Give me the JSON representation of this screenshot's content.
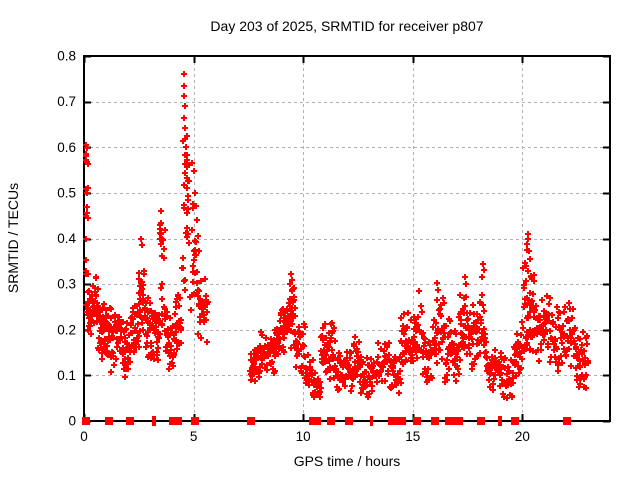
{
  "page": {
    "background": "#ffffff"
  },
  "chart_data": {
    "type": "scatter",
    "title": "Day 203 of 2025, SRMTID for receiver p807",
    "xlabel": "GPS time / hours",
    "ylabel": "SRMTID / TECUs",
    "xlim": [
      0,
      24
    ],
    "ylim": [
      0,
      0.8
    ],
    "xtick_values": [
      0,
      5,
      10,
      15,
      20
    ],
    "xtick_labels": [
      "0",
      "5",
      "10",
      "15",
      "20"
    ],
    "ytick_values": [
      0,
      0.1,
      0.2,
      0.3,
      0.4,
      0.5,
      0.6,
      0.7,
      0.8
    ],
    "ytick_labels": [
      "0",
      "0.1",
      "0.2",
      "0.3",
      "0.4",
      "0.5",
      "0.6",
      "0.7",
      "0.8"
    ],
    "grid": true,
    "legend": "none",
    "axis_color": "#000000",
    "grid_color": "#b0b0b0",
    "marker": {
      "shape": "plus",
      "color": "#ff0000",
      "size": 7
    },
    "zero_marker": {
      "shape": "filled-square",
      "color": "#ff0000",
      "size": 8
    },
    "series": [
      {
        "name": "SRMTID",
        "seed": 918273,
        "segments": [
          [
            0.06,
            0.2,
            14,
            0.2,
            0.61,
            1
          ],
          [
            0.15,
            0.65,
            50,
            0.16,
            0.33,
            0
          ],
          [
            0.65,
            1.15,
            48,
            0.13,
            0.28,
            0
          ],
          [
            1.15,
            1.8,
            48,
            0.1,
            0.26,
            0
          ],
          [
            1.8,
            2.12,
            28,
            0.09,
            0.22,
            0
          ],
          [
            2.12,
            2.55,
            32,
            0.12,
            0.28,
            0
          ],
          [
            2.5,
            2.78,
            24,
            0.16,
            0.385,
            0
          ],
          [
            2.78,
            3.12,
            28,
            0.12,
            0.3,
            0
          ],
          [
            3.12,
            3.45,
            26,
            0.12,
            0.28,
            0
          ],
          [
            3.42,
            3.68,
            22,
            0.18,
            0.44,
            1
          ],
          [
            3.68,
            4.12,
            32,
            0.1,
            0.27,
            0
          ],
          [
            4.12,
            4.45,
            26,
            0.13,
            0.32,
            0
          ],
          [
            4.48,
            4.78,
            28,
            0.28,
            0.64,
            1
          ],
          [
            4.78,
            5.18,
            20,
            0.24,
            0.5,
            1
          ],
          [
            5.15,
            5.65,
            34,
            0.17,
            0.33,
            0
          ],
          [
            7.58,
            8.05,
            35,
            0.07,
            0.18,
            0
          ],
          [
            8.05,
            8.7,
            45,
            0.09,
            0.21,
            0
          ],
          [
            8.7,
            9.25,
            45,
            0.12,
            0.26,
            0
          ],
          [
            9.25,
            9.65,
            38,
            0.15,
            0.31,
            0
          ],
          [
            9.65,
            10.1,
            30,
            0.09,
            0.22,
            0
          ],
          [
            10.1,
            10.45,
            25,
            0.06,
            0.15,
            0
          ],
          [
            10.45,
            10.8,
            25,
            0.035,
            0.12,
            0
          ],
          [
            10.8,
            11.45,
            45,
            0.08,
            0.23,
            0
          ],
          [
            11.45,
            12.3,
            55,
            0.05,
            0.16,
            0
          ],
          [
            12.3,
            12.6,
            22,
            0.08,
            0.2,
            0
          ],
          [
            12.6,
            13.4,
            50,
            0.05,
            0.15,
            0
          ],
          [
            13.4,
            13.95,
            30,
            0.06,
            0.18,
            0
          ],
          [
            13.95,
            14.45,
            32,
            0.05,
            0.16,
            0
          ],
          [
            14.45,
            15.05,
            40,
            0.1,
            0.24,
            0
          ],
          [
            15.05,
            15.45,
            26,
            0.12,
            0.27,
            0
          ],
          [
            15.45,
            15.92,
            30,
            0.08,
            0.2,
            0
          ],
          [
            15.92,
            16.45,
            35,
            0.1,
            0.28,
            0
          ],
          [
            16.45,
            17.12,
            45,
            0.07,
            0.24,
            0
          ],
          [
            17.12,
            17.6,
            35,
            0.1,
            0.3,
            0
          ],
          [
            17.6,
            18.35,
            50,
            0.1,
            0.3,
            0
          ],
          [
            18.35,
            19.05,
            45,
            0.06,
            0.18,
            0
          ],
          [
            19.05,
            19.6,
            30,
            0.04,
            0.14,
            0
          ],
          [
            19.6,
            19.98,
            25,
            0.08,
            0.2,
            0
          ],
          [
            19.98,
            20.25,
            25,
            0.15,
            0.38,
            1
          ],
          [
            20.25,
            20.55,
            30,
            0.15,
            0.33,
            1
          ],
          [
            20.55,
            21.3,
            50,
            0.12,
            0.28,
            0
          ],
          [
            21.3,
            22.35,
            60,
            0.1,
            0.27,
            0
          ],
          [
            22.35,
            23.0,
            40,
            0.06,
            0.22,
            0
          ]
        ],
        "peak_points": [
          [
            0.1,
            0.605
          ],
          [
            0.13,
            0.598
          ],
          [
            0.1,
            0.573
          ],
          [
            0.16,
            0.51
          ],
          [
            0.12,
            0.5
          ],
          [
            0.14,
            0.455
          ],
          [
            0.11,
            0.4
          ],
          [
            0.09,
            0.352
          ],
          [
            2.6,
            0.4
          ],
          [
            2.63,
            0.386
          ],
          [
            3.5,
            0.46
          ],
          [
            3.53,
            0.435
          ],
          [
            3.47,
            0.412
          ],
          [
            4.55,
            0.76
          ],
          [
            4.57,
            0.735
          ],
          [
            4.55,
            0.712
          ],
          [
            4.6,
            0.69
          ],
          [
            4.58,
            0.665
          ],
          [
            4.62,
            0.643
          ],
          [
            4.6,
            0.617
          ],
          [
            4.65,
            0.6
          ],
          [
            4.63,
            0.582
          ],
          [
            4.68,
            0.556
          ],
          [
            4.7,
            0.532
          ],
          [
            4.72,
            0.51
          ],
          [
            4.95,
            0.565
          ],
          [
            5.0,
            0.548
          ],
          [
            5.05,
            0.5
          ],
          [
            5.1,
            0.472
          ],
          [
            5.16,
            0.44
          ],
          [
            5.21,
            0.405
          ],
          [
            5.26,
            0.372
          ],
          [
            9.45,
            0.322
          ],
          [
            9.49,
            0.31
          ],
          [
            9.42,
            0.301
          ],
          [
            15.3,
            0.285
          ],
          [
            16.1,
            0.302
          ],
          [
            16.13,
            0.287
          ],
          [
            17.4,
            0.315
          ],
          [
            17.43,
            0.3
          ],
          [
            18.2,
            0.345
          ],
          [
            18.23,
            0.33
          ],
          [
            18.17,
            0.316
          ],
          [
            20.25,
            0.41
          ],
          [
            20.28,
            0.4
          ],
          [
            20.22,
            0.387
          ],
          [
            20.31,
            0.372
          ],
          [
            20.36,
            0.356
          ],
          [
            22.6,
            0.075
          ],
          [
            22.65,
            0.082
          ]
        ],
        "zero_square_x": [
          0.07,
          1.13,
          2.12,
          4.05,
          4.18,
          4.3,
          5.08,
          7.63,
          10.45,
          10.62,
          11.25,
          12.07,
          14.05,
          14.25,
          14.5,
          15.2,
          16.02,
          16.65,
          16.82,
          17.1,
          18.1,
          19.68,
          22.05
        ],
        "zero_bar_x": [
          3.13,
          3.25,
          13.08,
          13.16,
          18.95,
          19.03
        ]
      }
    ]
  }
}
